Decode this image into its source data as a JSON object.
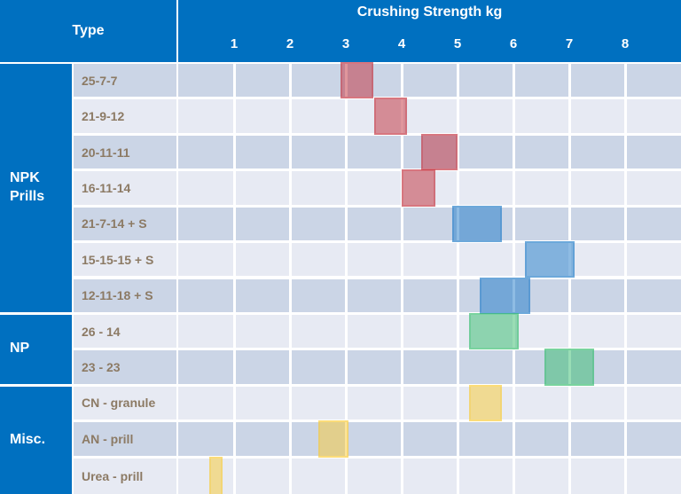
{
  "header": {
    "type_label": "Type",
    "title": "Crushing Strength kg"
  },
  "colors": {
    "header_blue": "#0070C0",
    "header_text": "#FFFFFF",
    "row_dark_bg": "#CBD5E6",
    "row_light_bg": "#E7EAF3",
    "grid_line": "#FFFFFF",
    "row_label_text": "#8C7A64",
    "bar_base": {
      "red": "#C22D3A",
      "blue": "#1E7AC7",
      "green": "#33BC6B",
      "yellow": "#F9CA31"
    },
    "bar_fill_alpha": 0.5,
    "bar_border_alpha": 0.3
  },
  "chart_data": {
    "type": "bar",
    "subtype": "floating-range-bars",
    "title": "Crushing Strength kg",
    "row_header": "Type",
    "x_axis": {
      "label": "Crushing Strength kg",
      "unit": "kg",
      "min": 0,
      "max": 9,
      "ticks": [
        1,
        2,
        3,
        4,
        5,
        6,
        7,
        8
      ],
      "grid": true
    },
    "legend": "none",
    "groups": [
      {
        "label": "NPK Prills",
        "row_start": 0,
        "row_end": 6
      },
      {
        "label": "NP",
        "row_start": 7,
        "row_end": 8
      },
      {
        "label": "Misc.",
        "row_start": 9,
        "row_end": 11
      }
    ],
    "rows": [
      {
        "label": "25-7-7",
        "group": "NPK Prills",
        "range_kg": [
          2.9,
          3.5
        ],
        "color": "red"
      },
      {
        "label": "21-9-12",
        "group": "NPK Prills",
        "range_kg": [
          3.5,
          4.1
        ],
        "color": "red"
      },
      {
        "label": "20-11-11",
        "group": "NPK Prills",
        "range_kg": [
          4.35,
          5.0
        ],
        "color": "red"
      },
      {
        "label": "16-11-14",
        "group": "NPK Prills",
        "range_kg": [
          4.0,
          4.6
        ],
        "color": "red"
      },
      {
        "label": "21-7-14 + S",
        "group": "NPK Prills",
        "range_kg": [
          4.9,
          5.8
        ],
        "color": "blue"
      },
      {
        "label": "15-15-15 + S",
        "group": "NPK Prills",
        "range_kg": [
          6.2,
          7.1
        ],
        "color": "blue"
      },
      {
        "label": "12-11-18 + S",
        "group": "NPK Prills",
        "range_kg": [
          5.4,
          6.3
        ],
        "color": "blue"
      },
      {
        "label": "26 - 14",
        "group": "NP",
        "range_kg": [
          5.2,
          6.1
        ],
        "color": "green"
      },
      {
        "label": "23 - 23",
        "group": "NP",
        "range_kg": [
          6.55,
          7.45
        ],
        "color": "green"
      },
      {
        "label": "CN - granule",
        "group": "Misc.",
        "range_kg": [
          5.2,
          5.8
        ],
        "color": "yellow"
      },
      {
        "label": "AN - prill",
        "group": "Misc.",
        "range_kg": [
          2.5,
          3.05
        ],
        "color": "yellow"
      },
      {
        "label": "Urea - prill",
        "group": "Misc.",
        "range_kg": [
          0.55,
          0.8
        ],
        "color": "yellow"
      }
    ]
  }
}
